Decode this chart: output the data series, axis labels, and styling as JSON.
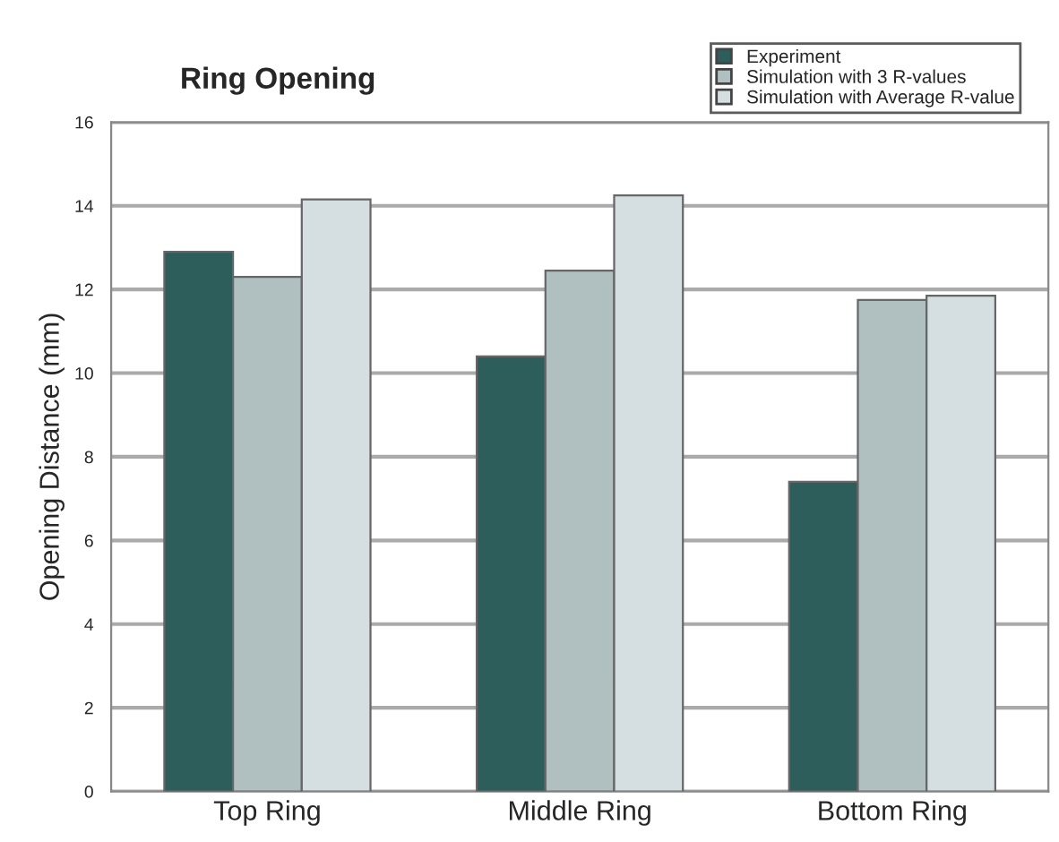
{
  "chart_data": {
    "type": "bar",
    "title": "Ring Opening",
    "ylabel": "Opening Distance (mm)",
    "categories": [
      "Top Ring",
      "Middle Ring",
      "Bottom Ring"
    ],
    "series": [
      {
        "name": "Experiment",
        "color": "#2e5e5c",
        "values": [
          12.9,
          10.4,
          7.4
        ]
      },
      {
        "name": "Simulation with 3 R-values",
        "color": "#b0c0c1",
        "values": [
          12.3,
          12.45,
          11.75
        ]
      },
      {
        "name": "Simulation with Average R-value",
        "color": "#d5dfe1",
        "values": [
          14.15,
          14.25,
          11.85
        ]
      }
    ],
    "ylim": [
      0,
      16
    ],
    "yticks": [
      0,
      2,
      4,
      6,
      8,
      10,
      12,
      14,
      16
    ],
    "grid": "y",
    "legend": "top right"
  }
}
